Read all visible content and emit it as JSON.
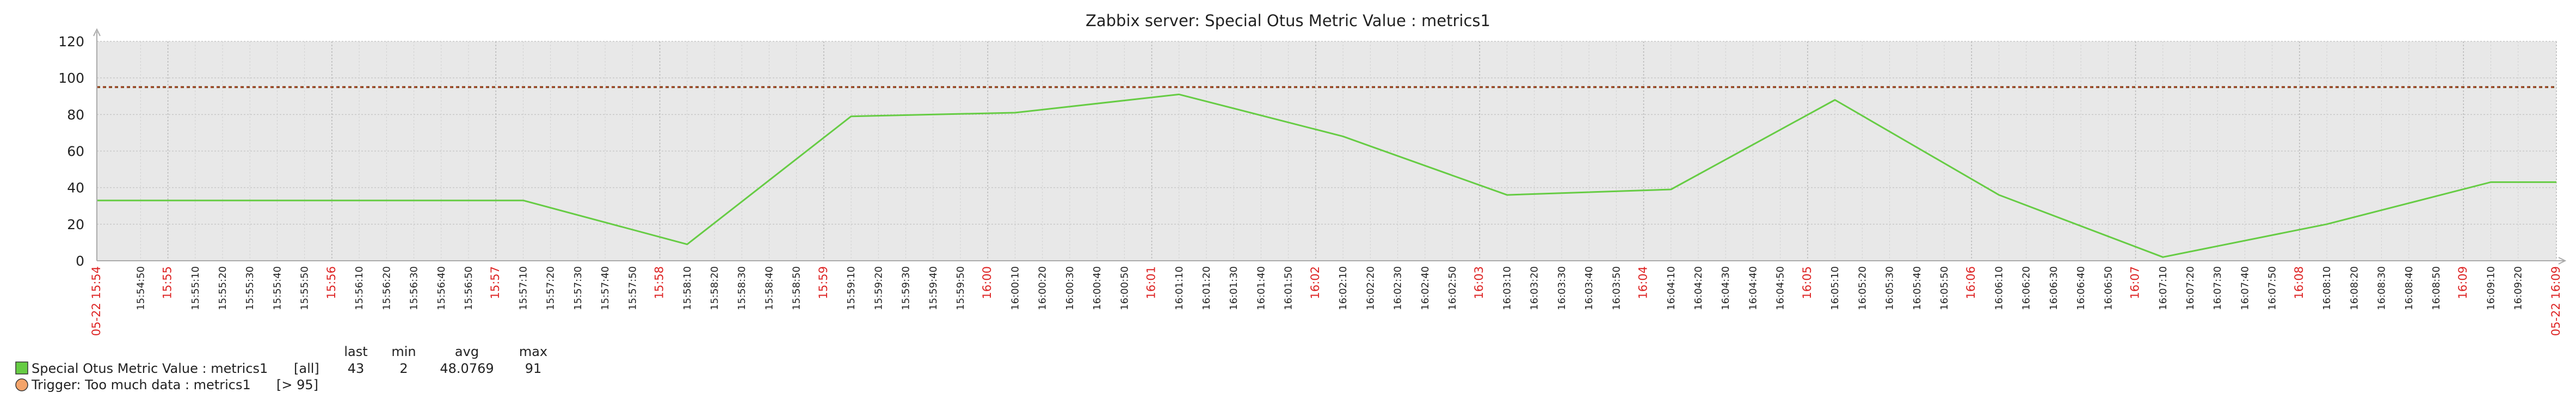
{
  "chart_data": {
    "type": "line",
    "title": "Zabbix server: Special Otus Metric Value : metrics1",
    "ylim": [
      0,
      120
    ],
    "y_ticks": [
      "0",
      "20",
      "40",
      "60",
      "80",
      "100",
      "120"
    ],
    "grid": true,
    "x_start": "15:54:34",
    "x_end": "16:09:34",
    "x_ticks": [
      {
        "t": "15:54:34",
        "label": "05-22 15:54",
        "major": true
      },
      {
        "t": "15:54:50",
        "label": "15:54:50"
      },
      {
        "t": "15:55:00",
        "label": "15:55",
        "major": true
      },
      {
        "t": "15:55:10",
        "label": "15:55:10"
      },
      {
        "t": "15:55:20",
        "label": "15:55:20"
      },
      {
        "t": "15:55:30",
        "label": "15:55:30"
      },
      {
        "t": "15:55:40",
        "label": "15:55:40"
      },
      {
        "t": "15:55:50",
        "label": "15:55:50"
      },
      {
        "t": "15:56:00",
        "label": "15:56",
        "major": true
      },
      {
        "t": "15:56:10",
        "label": "15:56:10"
      },
      {
        "t": "15:56:20",
        "label": "15:56:20"
      },
      {
        "t": "15:56:30",
        "label": "15:56:30"
      },
      {
        "t": "15:56:40",
        "label": "15:56:40"
      },
      {
        "t": "15:56:50",
        "label": "15:56:50"
      },
      {
        "t": "15:57:00",
        "label": "15:57",
        "major": true
      },
      {
        "t": "15:57:10",
        "label": "15:57:10"
      },
      {
        "t": "15:57:20",
        "label": "15:57:20"
      },
      {
        "t": "15:57:30",
        "label": "15:57:30"
      },
      {
        "t": "15:57:40",
        "label": "15:57:40"
      },
      {
        "t": "15:57:50",
        "label": "15:57:50"
      },
      {
        "t": "15:58:00",
        "label": "15:58",
        "major": true
      },
      {
        "t": "15:58:10",
        "label": "15:58:10"
      },
      {
        "t": "15:58:20",
        "label": "15:58:20"
      },
      {
        "t": "15:58:30",
        "label": "15:58:30"
      },
      {
        "t": "15:58:40",
        "label": "15:58:40"
      },
      {
        "t": "15:58:50",
        "label": "15:58:50"
      },
      {
        "t": "15:59:00",
        "label": "15:59",
        "major": true
      },
      {
        "t": "15:59:10",
        "label": "15:59:10"
      },
      {
        "t": "15:59:20",
        "label": "15:59:20"
      },
      {
        "t": "15:59:30",
        "label": "15:59:30"
      },
      {
        "t": "15:59:40",
        "label": "15:59:40"
      },
      {
        "t": "15:59:50",
        "label": "15:59:50"
      },
      {
        "t": "16:00:00",
        "label": "16:00",
        "major": true
      },
      {
        "t": "16:00:10",
        "label": "16:00:10"
      },
      {
        "t": "16:00:20",
        "label": "16:00:20"
      },
      {
        "t": "16:00:30",
        "label": "16:00:30"
      },
      {
        "t": "16:00:40",
        "label": "16:00:40"
      },
      {
        "t": "16:00:50",
        "label": "16:00:50"
      },
      {
        "t": "16:01:00",
        "label": "16:01",
        "major": true
      },
      {
        "t": "16:01:10",
        "label": "16:01:10"
      },
      {
        "t": "16:01:20",
        "label": "16:01:20"
      },
      {
        "t": "16:01:30",
        "label": "16:01:30"
      },
      {
        "t": "16:01:40",
        "label": "16:01:40"
      },
      {
        "t": "16:01:50",
        "label": "16:01:50"
      },
      {
        "t": "16:02:00",
        "label": "16:02",
        "major": true
      },
      {
        "t": "16:02:10",
        "label": "16:02:10"
      },
      {
        "t": "16:02:20",
        "label": "16:02:20"
      },
      {
        "t": "16:02:30",
        "label": "16:02:30"
      },
      {
        "t": "16:02:40",
        "label": "16:02:40"
      },
      {
        "t": "16:02:50",
        "label": "16:02:50"
      },
      {
        "t": "16:03:00",
        "label": "16:03",
        "major": true
      },
      {
        "t": "16:03:10",
        "label": "16:03:10"
      },
      {
        "t": "16:03:20",
        "label": "16:03:20"
      },
      {
        "t": "16:03:30",
        "label": "16:03:30"
      },
      {
        "t": "16:03:40",
        "label": "16:03:40"
      },
      {
        "t": "16:03:50",
        "label": "16:03:50"
      },
      {
        "t": "16:04:00",
        "label": "16:04",
        "major": true
      },
      {
        "t": "16:04:10",
        "label": "16:04:10"
      },
      {
        "t": "16:04:20",
        "label": "16:04:20"
      },
      {
        "t": "16:04:30",
        "label": "16:04:30"
      },
      {
        "t": "16:04:40",
        "label": "16:04:40"
      },
      {
        "t": "16:04:50",
        "label": "16:04:50"
      },
      {
        "t": "16:05:00",
        "label": "16:05",
        "major": true
      },
      {
        "t": "16:05:10",
        "label": "16:05:10"
      },
      {
        "t": "16:05:20",
        "label": "16:05:20"
      },
      {
        "t": "16:05:30",
        "label": "16:05:30"
      },
      {
        "t": "16:05:40",
        "label": "16:05:40"
      },
      {
        "t": "16:05:50",
        "label": "16:05:50"
      },
      {
        "t": "16:06:00",
        "label": "16:06",
        "major": true
      },
      {
        "t": "16:06:10",
        "label": "16:06:10"
      },
      {
        "t": "16:06:20",
        "label": "16:06:20"
      },
      {
        "t": "16:06:30",
        "label": "16:06:30"
      },
      {
        "t": "16:06:40",
        "label": "16:06:40"
      },
      {
        "t": "16:06:50",
        "label": "16:06:50"
      },
      {
        "t": "16:07:00",
        "label": "16:07",
        "major": true
      },
      {
        "t": "16:07:10",
        "label": "16:07:10"
      },
      {
        "t": "16:07:20",
        "label": "16:07:20"
      },
      {
        "t": "16:07:30",
        "label": "16:07:30"
      },
      {
        "t": "16:07:40",
        "label": "16:07:40"
      },
      {
        "t": "16:07:50",
        "label": "16:07:50"
      },
      {
        "t": "16:08:00",
        "label": "16:08",
        "major": true
      },
      {
        "t": "16:08:10",
        "label": "16:08:10"
      },
      {
        "t": "16:08:20",
        "label": "16:08:20"
      },
      {
        "t": "16:08:30",
        "label": "16:08:30"
      },
      {
        "t": "16:08:40",
        "label": "16:08:40"
      },
      {
        "t": "16:08:50",
        "label": "16:08:50"
      },
      {
        "t": "16:09:00",
        "label": "16:09",
        "major": true
      },
      {
        "t": "16:09:10",
        "label": "16:09:10"
      },
      {
        "t": "16:09:20",
        "label": "16:09:20"
      },
      {
        "t": "16:09:34",
        "label": "05-22 16:09",
        "major": true
      }
    ],
    "series": [
      {
        "name": "Special Otus Metric Value : metrics1",
        "color": "#66cc44",
        "points": [
          {
            "t": "15:54:34",
            "y": 33
          },
          {
            "t": "15:57:10",
            "y": 33
          },
          {
            "t": "15:58:10",
            "y": 9
          },
          {
            "t": "15:59:10",
            "y": 79
          },
          {
            "t": "16:00:10",
            "y": 81
          },
          {
            "t": "16:01:10",
            "y": 91
          },
          {
            "t": "16:02:10",
            "y": 68
          },
          {
            "t": "16:03:10",
            "y": 36
          },
          {
            "t": "16:04:10",
            "y": 39
          },
          {
            "t": "16:05:10",
            "y": 88
          },
          {
            "t": "16:06:10",
            "y": 36
          },
          {
            "t": "16:07:10",
            "y": 2
          },
          {
            "t": "16:08:10",
            "y": 20
          },
          {
            "t": "16:09:10",
            "y": 43
          },
          {
            "t": "16:09:34",
            "y": 43
          }
        ]
      }
    ],
    "trigger": {
      "value": 95,
      "color": "#c0392b",
      "line_color": "#7a4a1c"
    }
  },
  "legend": {
    "headers": {
      "last": "last",
      "min": "min",
      "avg": "avg",
      "max": "max"
    },
    "item": {
      "name": "Special Otus Metric Value : metrics1",
      "func": "[all]",
      "last": "43",
      "min": "2",
      "avg": "48.0769",
      "max": "91",
      "color": "#66cc44"
    },
    "trigger": {
      "name": "Trigger: Too much data : metrics1",
      "condition": "[> 95]",
      "color": "#f4a46a"
    }
  }
}
